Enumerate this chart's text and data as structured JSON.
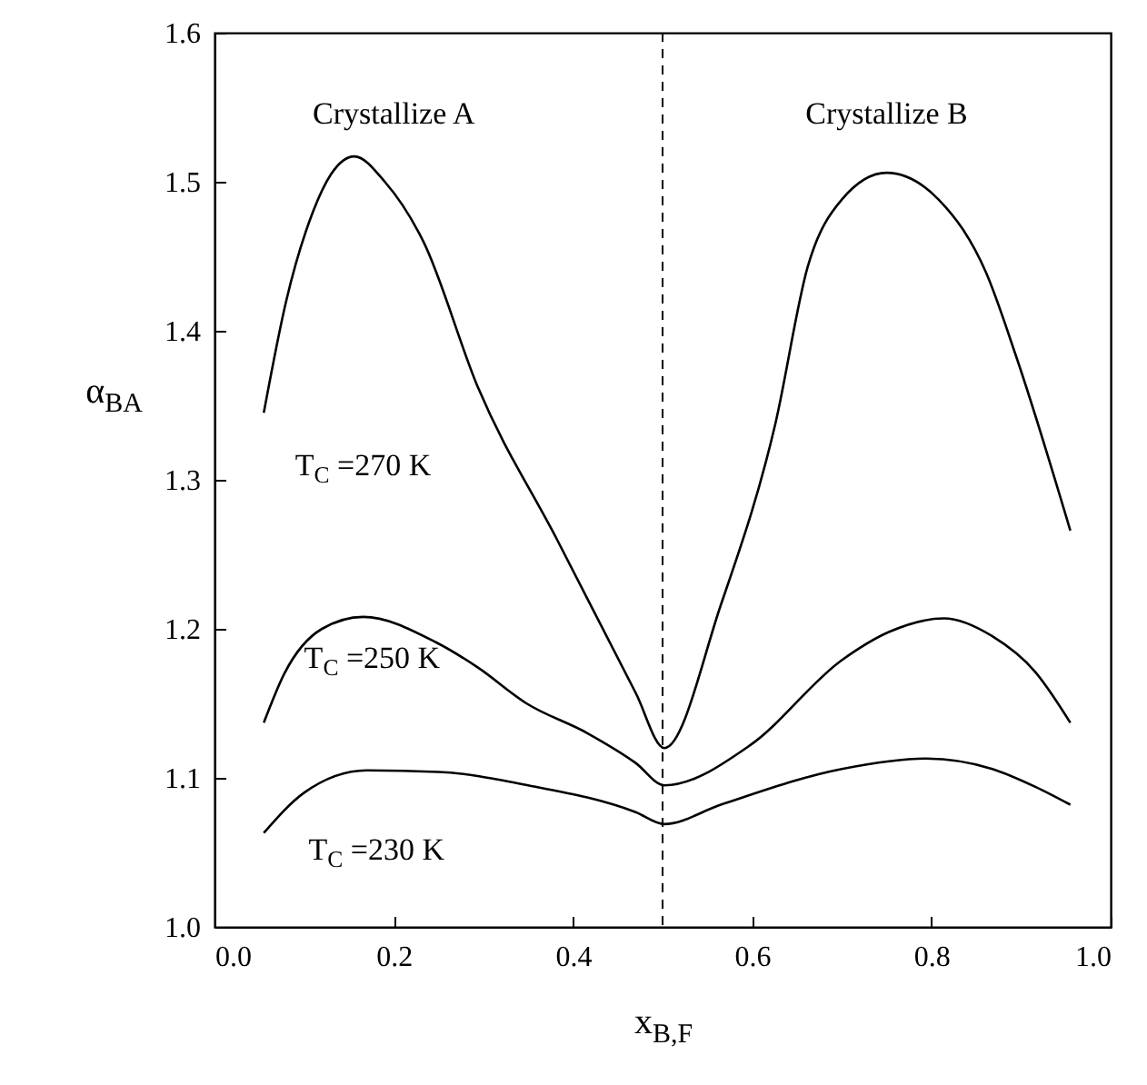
{
  "chart_data": {
    "type": "line",
    "xlabel": "x$_{B,F}$",
    "ylabel": "α$_{BA}$",
    "xlim": [
      0,
      1
    ],
    "ylim": [
      1,
      1.6
    ],
    "xticks": [
      {
        "value": 0,
        "label": "0.0"
      },
      {
        "value": 0.2,
        "label": "0.2"
      },
      {
        "value": 0.4,
        "label": "0.4"
      },
      {
        "value": 0.6,
        "label": "0.6"
      },
      {
        "value": 0.8,
        "label": "0.8"
      },
      {
        "value": 1,
        "label": "1.0"
      }
    ],
    "yticks": [
      {
        "value": 1,
        "label": "1.0"
      },
      {
        "value": 1.1,
        "label": "1.1"
      },
      {
        "value": 1.2,
        "label": "1.2"
      },
      {
        "value": 1.3,
        "label": "1.3"
      },
      {
        "value": 1.4,
        "label": "1.4"
      },
      {
        "value": 1.5,
        "label": "1.5"
      },
      {
        "value": 1.6,
        "label": "1.6"
      }
    ],
    "grid": false,
    "marker": "none",
    "line_style": "solid",
    "series": [
      {
        "color": "#000000",
        "x": [
          0.055,
          0.08,
          0.11,
          0.13,
          0.156,
          0.19,
          0.233,
          0.294,
          0.383,
          0.47,
          0.502,
          0.565,
          0.626,
          0.662,
          0.7,
          0.75,
          0.808,
          0.861,
          0.895,
          0.955
        ],
        "values": [
          1.345,
          1.42,
          1.48,
          1.505,
          1.517,
          1.5,
          1.46,
          1.362,
          1.259,
          1.157,
          1.12,
          1.216,
          1.338,
          1.443,
          1.488,
          1.506,
          1.488,
          1.439,
          1.382,
          1.266
        ]
      },
      {
        "color": "#000000",
        "x": [
          0.055,
          0.078,
          0.12,
          0.166,
          0.247,
          0.294,
          0.348,
          0.416,
          0.47,
          0.502,
          0.598,
          0.7,
          0.753,
          0.814,
          0.868,
          0.916,
          0.955
        ],
        "values": [
          1.137,
          1.17,
          1.2,
          1.208,
          1.191,
          1.174,
          1.15,
          1.13,
          1.11,
          1.095,
          1.122,
          1.179,
          1.198,
          1.207,
          1.195,
          1.171,
          1.137
        ]
      },
      {
        "color": "#000000",
        "x": [
          0.055,
          0.1,
          0.17,
          0.25,
          0.35,
          0.47,
          0.502,
          0.565,
          0.7,
          0.794,
          0.868,
          0.916,
          0.955
        ],
        "values": [
          1.063,
          1.09,
          1.105,
          1.104,
          1.095,
          1.077,
          1.069,
          1.082,
          1.106,
          1.113,
          1.106,
          1.094,
          1.082
        ]
      }
    ],
    "ref_lines": [
      {
        "axis": "x",
        "value": 0.5,
        "line_style": "dashed",
        "color": "#000000"
      }
    ],
    "annotations": [
      "Crystallize A",
      "Crystallize B",
      "T$_{C}$ =270 K",
      "T$_{C}$ =250 K",
      "T$_{C}$ =230 K"
    ]
  }
}
